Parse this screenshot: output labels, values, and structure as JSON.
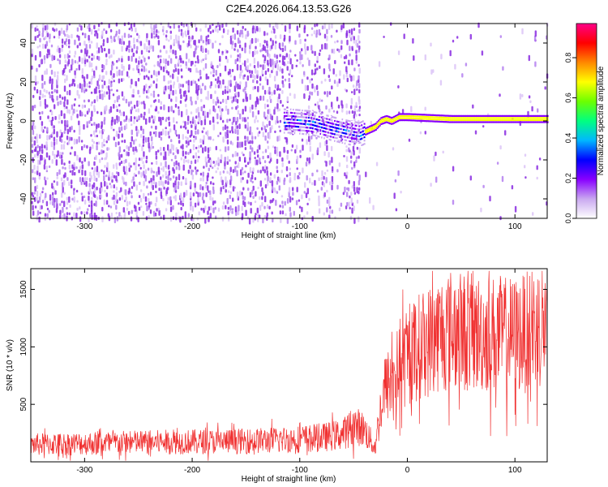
{
  "title": "C2E4.2026.064.13.53.G26",
  "chart_data": [
    {
      "type": "heatmap",
      "name": "spectrogram",
      "xlabel": "Height of straight line (km)",
      "ylabel": "Frequency (Hz)",
      "xlim": [
        -350,
        130
      ],
      "ylim": [
        -50,
        50
      ],
      "xticks": [
        -300,
        -200,
        -100,
        0,
        100
      ],
      "yticks": [
        -40,
        -20,
        0,
        20,
        40
      ],
      "colorbar": {
        "label": "Normalized spectral amplitude",
        "range": [
          0,
          0.97
        ],
        "ticks": [
          0.0,
          0.2,
          0.4,
          0.6,
          0.8
        ],
        "colors": [
          "#ffffff",
          "#c9a8f0",
          "#8800ff",
          "#0000ff",
          "#00b7ff",
          "#00ff80",
          "#6cff00",
          "#ffff00",
          "#ff8800",
          "#ff0000",
          "#ff0088"
        ]
      },
      "ridge": {
        "x": [
          -110,
          -90,
          -70,
          -55,
          -45,
          -38,
          -30,
          -25,
          -20,
          -15,
          -8,
          0,
          40,
          130
        ],
        "y": [
          0,
          -1,
          -4,
          -6,
          -7,
          -5,
          -3,
          0,
          1,
          0,
          2,
          2,
          1,
          1
        ],
        "note": "bright narrow line near 1-2 Hz for x > -40 km; diffuse noise for x < -100 km"
      }
    },
    {
      "type": "line",
      "name": "snr",
      "xlabel": "Height of straight line (km)",
      "ylabel": "SNR (10 * v/v)",
      "xlim": [
        -350,
        130
      ],
      "ylim": [
        0,
        1680
      ],
      "xticks": [
        -300,
        -200,
        -100,
        0,
        100
      ],
      "yticks": [
        500,
        1000,
        1500
      ],
      "color": "#f03030",
      "series": [
        {
          "name": "SNR",
          "x": [
            -350,
            -300,
            -250,
            -200,
            -150,
            -120,
            -100,
            -80,
            -60,
            -50,
            -40,
            -30,
            -25,
            -20,
            -10,
            0,
            10,
            20,
            30,
            40,
            60,
            80,
            100,
            110,
            120,
            130
          ],
          "y": [
            150,
            160,
            170,
            175,
            180,
            190,
            200,
            210,
            240,
            320,
            280,
            120,
            450,
            640,
            780,
            900,
            1000,
            1050,
            1120,
            1150,
            1120,
            1110,
            1100,
            1120,
            1180,
            1200
          ]
        }
      ]
    }
  ]
}
